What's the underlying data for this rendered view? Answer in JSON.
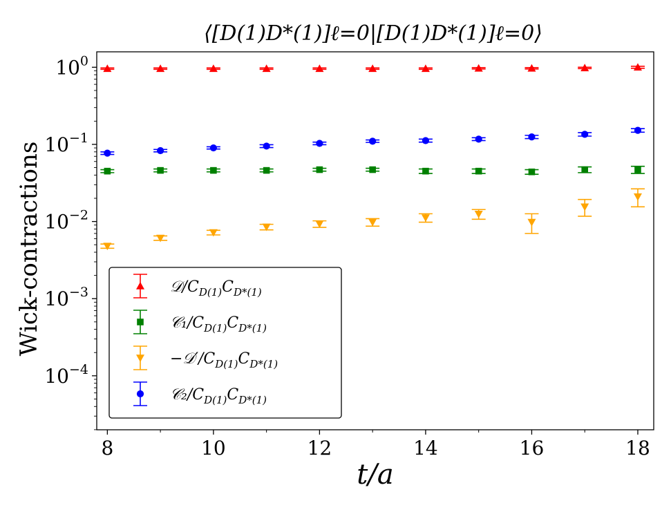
{
  "chart_data": {
    "type": "scatter",
    "title": "⟨[D(1)D*(1)]ℓ=0|[D(1)D*(1)]ℓ=0⟩",
    "xlabel": "t/a",
    "ylabel": "Wick-contractions",
    "yscale": "log",
    "xlim": [
      7.8,
      18.3
    ],
    "ylim_log10": [
      -4.7,
      0.2
    ],
    "xticks": [
      8,
      10,
      12,
      14,
      16,
      18
    ],
    "xtick_labels": [
      "8",
      "10",
      "12",
      "14",
      "16",
      "18"
    ],
    "yticks_exp": [
      0,
      -1,
      -2,
      -3,
      -4
    ],
    "yticks_base": "10",
    "ytick_exps": [
      "0",
      "−1",
      "−2",
      "−3",
      "−4"
    ],
    "legend_position": "lower-left",
    "series": [
      {
        "name": "𝒟/C_D(1)C_D*(1)",
        "legend_label": "𝒟/C",
        "legend_sub": "D(1)",
        "legend_mid": "C",
        "legend_sub2": "D*(1)",
        "color": "#ff0000",
        "marker": "triangle-up",
        "x": [
          8,
          9,
          10,
          11,
          12,
          13,
          14,
          15,
          16,
          17,
          18
        ],
        "y": [
          0.96,
          0.96,
          0.96,
          0.96,
          0.96,
          0.96,
          0.96,
          0.97,
          0.97,
          0.98,
          1.0
        ],
        "yerr": [
          0.02,
          0.02,
          0.02,
          0.02,
          0.02,
          0.02,
          0.02,
          0.02,
          0.02,
          0.02,
          0.03
        ]
      },
      {
        "name": "𝒞1/C_D(1)C_D*(1)",
        "legend_label": "𝒞₁/C",
        "legend_sub": "D(1)",
        "legend_mid": "C",
        "legend_sub2": "D*(1)",
        "color": "#008000",
        "marker": "square",
        "x": [
          8,
          9,
          10,
          11,
          12,
          13,
          14,
          15,
          16,
          17,
          18
        ],
        "y": [
          0.045,
          0.046,
          0.046,
          0.046,
          0.047,
          0.047,
          0.045,
          0.045,
          0.044,
          0.047,
          0.047
        ],
        "yerr": [
          0.002,
          0.002,
          0.002,
          0.002,
          0.002,
          0.002,
          0.003,
          0.003,
          0.003,
          0.004,
          0.005
        ]
      },
      {
        "name": "−𝒟′/C_D(1)C_D*(1)",
        "legend_label": "−𝒟′/C",
        "legend_sub": "D(1)",
        "legend_mid": "C",
        "legend_sub2": "D*(1)",
        "color": "#ffa500",
        "marker": "triangle-down",
        "x": [
          8,
          9,
          10,
          11,
          12,
          13,
          14,
          15,
          16,
          17,
          18
        ],
        "y": [
          0.0048,
          0.0061,
          0.0072,
          0.0085,
          0.0093,
          0.0098,
          0.0112,
          0.0125,
          0.0098,
          0.0155,
          0.021
        ],
        "yerr": [
          0.0003,
          0.0004,
          0.0005,
          0.0007,
          0.0009,
          0.0011,
          0.0014,
          0.0018,
          0.0028,
          0.0038,
          0.0055
        ]
      },
      {
        "name": "𝒞2/C_D(1)C_D*(1)",
        "legend_label": "𝒞₂/C",
        "legend_sub": "D(1)",
        "legend_mid": "C",
        "legend_sub2": "D*(1)",
        "color": "#0000ff",
        "marker": "circle",
        "x": [
          8,
          9,
          10,
          11,
          12,
          13,
          14,
          15,
          16,
          17,
          18
        ],
        "y": [
          0.077,
          0.083,
          0.09,
          0.095,
          0.103,
          0.11,
          0.112,
          0.117,
          0.125,
          0.135,
          0.152
        ],
        "yerr": [
          0.003,
          0.003,
          0.003,
          0.004,
          0.004,
          0.004,
          0.005,
          0.005,
          0.006,
          0.007,
          0.008
        ]
      }
    ]
  }
}
